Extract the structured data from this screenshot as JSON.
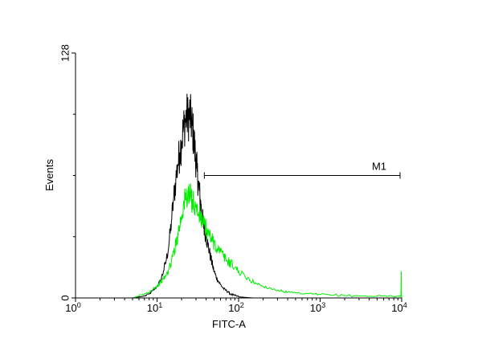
{
  "chart_data": {
    "type": "line",
    "xlabel": "FITC-A",
    "ylabel": "Events",
    "x_scale": "log",
    "xlim": [
      1,
      10000
    ],
    "ylim": [
      0,
      128
    ],
    "x_ticks": [
      {
        "value": 1,
        "base": "10",
        "exp": "0"
      },
      {
        "value": 10,
        "base": "10",
        "exp": "1"
      },
      {
        "value": 100,
        "base": "10",
        "exp": "2"
      },
      {
        "value": 1000,
        "base": "10",
        "exp": "3"
      },
      {
        "value": 10000,
        "base": "10",
        "exp": "4"
      }
    ],
    "y_ticks": [
      {
        "value": 0,
        "label": "0"
      },
      {
        "value": 128,
        "label": "128"
      }
    ],
    "y_minor_ticks": [
      32,
      64,
      96
    ],
    "grid": false,
    "legend": "none",
    "gate": {
      "label": "M1",
      "x_start": 38,
      "x_end": 10000,
      "y": 64
    },
    "series": [
      {
        "color": "#000000",
        "points": [
          [
            5,
            0
          ],
          [
            6,
            0.5
          ],
          [
            7,
            1
          ],
          [
            8,
            2
          ],
          [
            9,
            4
          ],
          [
            10,
            6
          ],
          [
            11,
            9
          ],
          [
            12,
            14
          ],
          [
            13,
            20
          ],
          [
            14,
            28
          ],
          [
            15,
            40
          ],
          [
            16,
            52
          ],
          [
            17,
            62
          ],
          [
            18,
            70
          ],
          [
            19,
            76
          ],
          [
            20,
            82
          ],
          [
            21,
            88
          ],
          [
            22,
            92
          ],
          [
            23,
            95
          ],
          [
            24,
            94
          ],
          [
            25,
            96
          ],
          [
            26,
            93
          ],
          [
            27,
            90
          ],
          [
            28,
            84
          ],
          [
            29,
            78
          ],
          [
            30,
            72
          ],
          [
            31,
            66
          ],
          [
            32,
            60
          ],
          [
            33,
            56
          ],
          [
            34,
            50
          ],
          [
            35,
            46
          ],
          [
            36,
            42
          ],
          [
            37,
            39
          ],
          [
            38,
            36
          ],
          [
            40,
            32
          ],
          [
            42,
            28
          ],
          [
            44,
            24
          ],
          [
            46,
            20
          ],
          [
            48,
            17
          ],
          [
            50,
            14
          ],
          [
            53,
            11
          ],
          [
            56,
            9
          ],
          [
            60,
            7
          ],
          [
            65,
            5
          ],
          [
            70,
            4
          ],
          [
            75,
            3
          ],
          [
            80,
            2
          ],
          [
            90,
            1.2
          ],
          [
            100,
            0.6
          ],
          [
            120,
            0.3
          ],
          [
            150,
            0
          ]
        ]
      },
      {
        "color": "#00ee00",
        "points": [
          [
            5,
            0
          ],
          [
            6,
            1
          ],
          [
            7,
            2
          ],
          [
            8,
            3
          ],
          [
            9,
            5
          ],
          [
            10,
            6
          ],
          [
            11,
            8
          ],
          [
            12,
            10
          ],
          [
            13,
            12
          ],
          [
            14,
            15
          ],
          [
            15,
            19
          ],
          [
            16,
            24
          ],
          [
            17,
            28
          ],
          [
            18,
            34
          ],
          [
            19,
            38
          ],
          [
            20,
            43
          ],
          [
            21,
            48
          ],
          [
            22,
            51
          ],
          [
            23,
            53
          ],
          [
            24,
            54
          ],
          [
            25,
            52
          ],
          [
            26,
            53
          ],
          [
            27,
            51
          ],
          [
            28,
            50
          ],
          [
            30,
            47
          ],
          [
            32,
            44
          ],
          [
            34,
            42
          ],
          [
            36,
            40
          ],
          [
            38,
            38
          ],
          [
            40,
            36
          ],
          [
            42,
            34
          ],
          [
            44,
            33
          ],
          [
            46,
            31
          ],
          [
            48,
            30
          ],
          [
            50,
            29
          ],
          [
            55,
            26
          ],
          [
            60,
            24
          ],
          [
            65,
            22
          ],
          [
            70,
            20
          ],
          [
            75,
            19
          ],
          [
            80,
            18
          ],
          [
            90,
            16
          ],
          [
            100,
            14
          ],
          [
            120,
            11
          ],
          [
            140,
            9
          ],
          [
            160,
            8
          ],
          [
            180,
            7
          ],
          [
            200,
            6
          ],
          [
            250,
            5
          ],
          [
            300,
            4
          ],
          [
            350,
            3.5
          ],
          [
            400,
            3
          ],
          [
            500,
            2.5
          ],
          [
            600,
            2.2
          ],
          [
            800,
            2
          ],
          [
            1000,
            1.8
          ],
          [
            1500,
            1.5
          ],
          [
            2000,
            1.3
          ],
          [
            3000,
            1.1
          ],
          [
            5000,
            1
          ],
          [
            7000,
            1
          ],
          [
            9000,
            1
          ],
          [
            9800,
            1
          ],
          [
            9900,
            14
          ],
          [
            9950,
            1
          ],
          [
            10000,
            0
          ]
        ]
      }
    ]
  }
}
